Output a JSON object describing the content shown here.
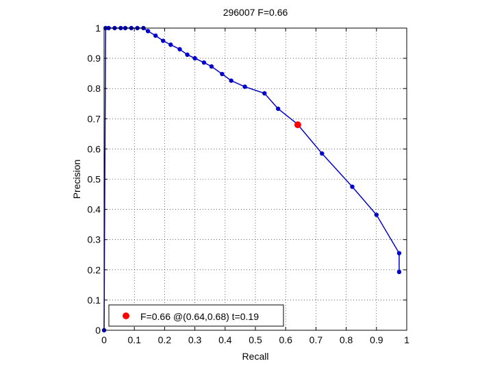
{
  "chart_data": {
    "type": "line",
    "title": "296007 F=0.66",
    "xlabel": "Recall",
    "ylabel": "Precision",
    "xlim": [
      0,
      1
    ],
    "ylim": [
      0,
      1
    ],
    "grid": true,
    "xticks": [
      0,
      0.1,
      0.2,
      0.3,
      0.4,
      0.5,
      0.6,
      0.7,
      0.8,
      0.9,
      1
    ],
    "xtick_labels": [
      "0",
      "0.1",
      "0.2",
      "0.3",
      "0.4",
      "0.5",
      "0.6",
      "0.7",
      "0.8",
      "0.9",
      "1"
    ],
    "yticks": [
      0,
      0.1,
      0.2,
      0.3,
      0.4,
      0.5,
      0.6,
      0.7,
      0.8,
      0.9,
      1
    ],
    "ytick_labels": [
      "0",
      "0.1",
      "0.2",
      "0.3",
      "0.4",
      "0.5",
      "0.6",
      "0.7",
      "0.8",
      "0.9",
      "1"
    ],
    "series": [
      {
        "color": "#0000cc",
        "x": [
          0.0,
          0.005,
          0.015,
          0.035,
          0.055,
          0.07,
          0.09,
          0.11,
          0.13,
          0.145,
          0.17,
          0.195,
          0.22,
          0.25,
          0.275,
          0.3,
          0.33,
          0.355,
          0.39,
          0.42,
          0.465,
          0.53,
          0.575,
          0.638,
          0.72,
          0.82,
          0.9,
          0.975,
          0.975
        ],
        "y": [
          0.0,
          1.0,
          1.0,
          1.0,
          1.0,
          1.0,
          1.0,
          1.0,
          1.0,
          0.99,
          0.975,
          0.958,
          0.945,
          0.93,
          0.912,
          0.9,
          0.886,
          0.873,
          0.848,
          0.826,
          0.806,
          0.784,
          0.733,
          0.683,
          0.585,
          0.475,
          0.382,
          0.255,
          0.193
        ]
      }
    ],
    "highlight": {
      "x": 0.64,
      "y": 0.68,
      "color": "#ff0000"
    },
    "legend": {
      "placement": "bottom-left",
      "entries": [
        "F=0.66 @(0.64,0.68) t=0.19"
      ]
    }
  }
}
